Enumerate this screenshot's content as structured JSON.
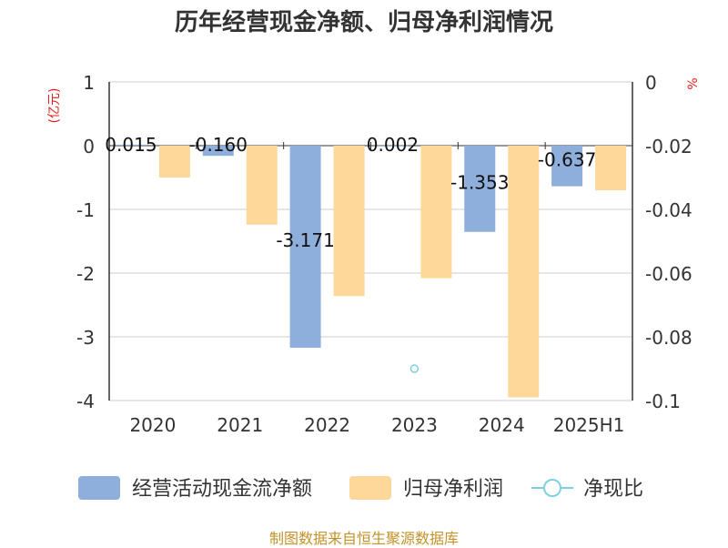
{
  "chart_data": {
    "type": "bar",
    "title": "历年经营现金净额、归母净利润情况",
    "categories": [
      "2020",
      "2021",
      "2022",
      "2023",
      "2024",
      "2025H1"
    ],
    "left_axis": {
      "unit_label": "(亿元)",
      "ylim": [
        -4,
        1
      ],
      "ticks": [
        "1",
        "0",
        "-1",
        "-2",
        "-3",
        "-4"
      ]
    },
    "right_axis": {
      "unit_label": "%",
      "ylim": [
        -0.1,
        0
      ],
      "ticks": [
        "0",
        "-0.02",
        "-0.04",
        "-0.06",
        "-0.08",
        "-0.1"
      ]
    },
    "series": [
      {
        "name": "经营活动现金流净额",
        "type": "bar",
        "axis": "left",
        "color": "#8eaedb",
        "values": [
          0.015,
          -0.16,
          -3.171,
          0.002,
          -1.353,
          -0.637
        ],
        "labels": [
          "0.015",
          "-0.160",
          "-3.171",
          "0.002",
          "-1.353",
          "-0.637"
        ]
      },
      {
        "name": "归母净利润",
        "type": "bar",
        "axis": "left",
        "color": "#fdd89a",
        "values": [
          -0.5,
          -1.24,
          -2.36,
          -2.08,
          -3.95,
          -0.7
        ]
      },
      {
        "name": "净现比",
        "type": "scatter",
        "axis": "right",
        "color": "#7ecfe0",
        "values": [
          null,
          null,
          null,
          -0.09,
          null,
          null
        ]
      }
    ],
    "legend_position": "bottom",
    "grid": true
  },
  "footer": {
    "source": "制图数据来自恒生聚源数据库"
  }
}
